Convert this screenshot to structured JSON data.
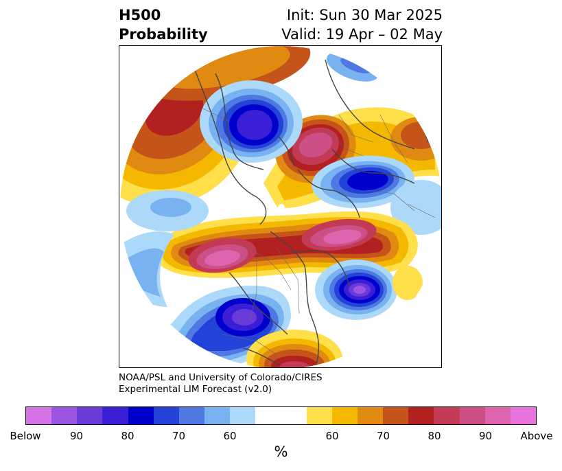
{
  "title": {
    "left_line1": "H500",
    "left_line2": "Probability",
    "right_line1": "Init: Sun 30 Mar 2025",
    "right_line2": "Valid: 19 Apr – 02 May"
  },
  "credit": {
    "line1": "NOAA/PSL and University of Colorado/CIRES",
    "line2": "Experimental LIM Forecast (v2.0)"
  },
  "colorbar": {
    "label": "%",
    "ticks": [
      "Below",
      "90",
      "80",
      "70",
      "60",
      "60",
      "70",
      "80",
      "90",
      "Above"
    ],
    "colors_below": [
      "#d673e6",
      "#9b55e0",
      "#6a3bd9",
      "#3a1fd6",
      "#0000cc",
      "#2342d8",
      "#4f78e3",
      "#78b2f0",
      "#acd8f9"
    ],
    "color_neutral": "#ffffff",
    "colors_above": [
      "#ffe04a",
      "#f5b800",
      "#e08a12",
      "#c4541a",
      "#b22020",
      "#c23a55",
      "#cc4f86",
      "#de64ae",
      "#e873dc"
    ]
  },
  "map": {
    "projection": "north-polar-stereographic",
    "anomalies": [
      {
        "name": "alaska-gulf-positive",
        "sign": "above",
        "peak": "Above"
      },
      {
        "name": "siberia-negative",
        "sign": "below",
        "peak": "80"
      },
      {
        "name": "arctic-ocean-positive",
        "sign": "above",
        "peak": "90"
      },
      {
        "name": "scandinavia-negative",
        "sign": "below",
        "peak": "80"
      },
      {
        "name": "central-asia-positive",
        "sign": "above",
        "peak": "90"
      },
      {
        "name": "pacific-positive",
        "sign": "above",
        "peak": "90"
      },
      {
        "name": "north-atlantic-negative",
        "sign": "below",
        "peak": "90"
      },
      {
        "name": "north-america-negative",
        "sign": "below",
        "peak": "90"
      },
      {
        "name": "southeast-us-positive",
        "sign": "above",
        "peak": "80"
      }
    ]
  }
}
